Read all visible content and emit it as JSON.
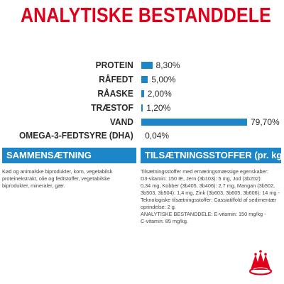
{
  "title": "ANALYTISKE BESTANDDELE",
  "bars": [
    {
      "label": "PROTEIN",
      "percent": 8.3,
      "value_text": "8,30%"
    },
    {
      "label": "RÅFEDT",
      "percent": 5.0,
      "value_text": "5,00%"
    },
    {
      "label": "RÅASKE",
      "percent": 2.0,
      "value_text": "2,00%"
    },
    {
      "label": "TRÆSTOF",
      "percent": 1.2,
      "value_text": "1,20%"
    },
    {
      "label": "VAND",
      "percent": 79.7,
      "value_text": "79,70%"
    },
    {
      "label": "OMEGA-3-FEDTSYRE (DHA)",
      "percent": 0.04,
      "value_text": "0,04%"
    }
  ],
  "bar_color": "#1d86c9",
  "title_color": "#e1001a",
  "composition": {
    "heading": "SAMMENSÆTNING",
    "text": "Kød og animalske biprodukter, korn, vegetabilsk\nproteinekstrakt, olie og fedtstoffer, vegetabilske\nbiprodukter, mineraler, gær."
  },
  "additives": {
    "heading": "TILSÆTNINGSSTOFFER (pr. kg)",
    "text": "Tilsætningsstoffer med ernæringsmæssige egenskaber:\nD3-vitamin: 150 IE, Jern (3b103): 5 mg, Jod (3b202):\n0,34 mg, Kobber (3b405, 3b406): 2,7 mg, Mangan (3b502,\n3b503, 3b504): 1,4 mg, Zink (3b603, 3b605, 3b606): 14 mg -\nTeknologiske tilsætningsstoffer: Cassiatilfold af sedimentær\noprindelse: 2 g.\nANALYTISKE BESTANDDELE: E-vitamin: 150 mg/kg -\nC-vitamin: 85 mg/kg."
  },
  "logo": {
    "icon": "royal-canin-crown-logo"
  }
}
